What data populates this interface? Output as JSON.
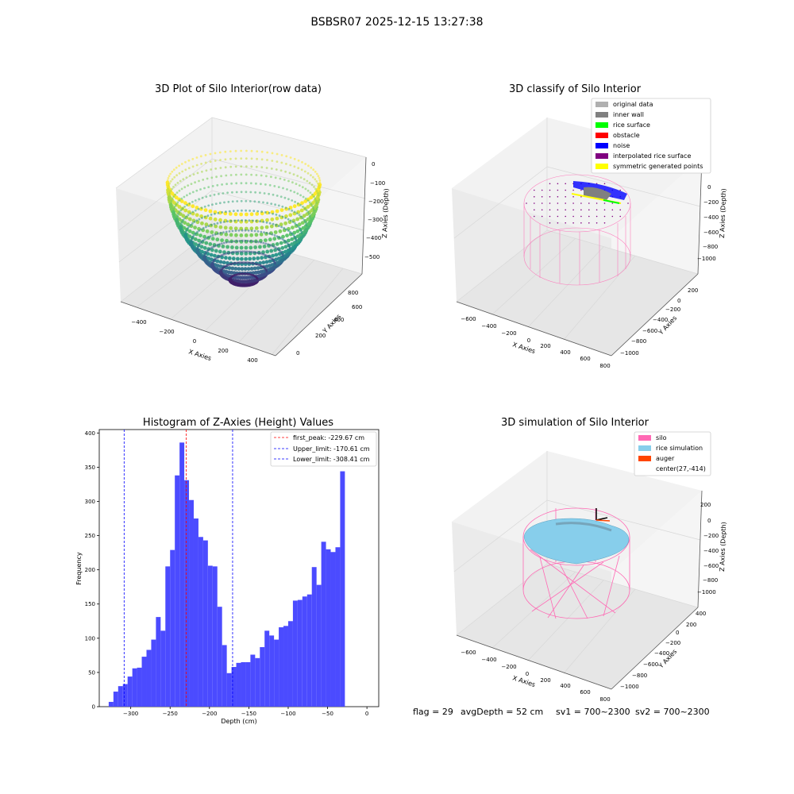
{
  "suptitle": "BSBSR07 2025-12-15 13:27:38",
  "colors": {
    "hist_bar": "#4b4bff",
    "peak_line": "#ff0000",
    "limit_line": "#0000ff",
    "silo": "#ff69b4",
    "rice_simulation": "#87ceeb",
    "auger": "#ff4500",
    "original_data": "#b0b0b0",
    "inner_wall": "#808080",
    "rice_surface": "#00ff00",
    "obstacle": "#ff0000",
    "noise": "#0000ff",
    "interpolated_rice_surface": "#800080",
    "symmetric_generated_points": "#ffff00"
  },
  "panel1": {
    "title": "3D Plot of Silo Interior(row data)",
    "xlabel": "X Axies",
    "ylabel": "Y Axies",
    "zlabel": "Z Axies (Depth)",
    "xticks": [
      "−400",
      "−200",
      "0",
      "200",
      "400"
    ],
    "yticks": [
      "0",
      "200",
      "400",
      "600",
      "800"
    ],
    "zticks": [
      "0",
      "−100",
      "−200",
      "−300",
      "−400",
      "−500"
    ]
  },
  "panel2": {
    "title": "3D classify of Silo Interior",
    "xlabel": "X Axies",
    "ylabel": "Y Axies",
    "zlabel": "Z Axies (Depth)",
    "xticks": [
      "−600",
      "−400",
      "−200",
      "0",
      "200",
      "400",
      "600",
      "800"
    ],
    "yticks": [
      "200",
      "0",
      "−200",
      "−400",
      "−600",
      "−800",
      "−1000"
    ],
    "zticks": [
      "200",
      "0",
      "−200",
      "−400",
      "−600",
      "−800",
      "−1000"
    ],
    "legend": [
      "original data",
      "inner wall",
      "rice surface",
      "obstacle",
      "noise",
      "interpolated rice surface",
      "symmetric generated points"
    ]
  },
  "panel4": {
    "title": "3D simulation of Silo Interior",
    "xlabel": "X Axies",
    "ylabel": "Y Axies",
    "zlabel": "Z Axies (Depth)",
    "xticks": [
      "−600",
      "−400",
      "−200",
      "0",
      "200",
      "400",
      "600",
      "800"
    ],
    "yticks": [
      "400",
      "200",
      "0",
      "−200",
      "−400",
      "−600",
      "−800",
      "−1000"
    ],
    "zticks": [
      "200",
      "0",
      "−200",
      "−400",
      "−600",
      "−800",
      "−1000"
    ],
    "legend": [
      "silo",
      "rice simulation",
      "auger",
      "center(27,-414)"
    ]
  },
  "footer": {
    "flag": "flag = 29",
    "avg_depth": "avgDepth = 52 cm",
    "sv1": "sv1 = 700~2300",
    "sv2": "sv2 = 700~2300"
  },
  "chart_data": {
    "type": "bar",
    "title": "Histogram of Z-Axies (Height) Values",
    "xlabel": "Depth (cm)",
    "ylabel": "Frequency",
    "xlim": [
      -340,
      15
    ],
    "ylim": [
      0,
      405
    ],
    "xticks": [
      -300,
      -250,
      -200,
      -150,
      -100,
      -50,
      0
    ],
    "yticks": [
      0,
      50,
      100,
      150,
      200,
      250,
      300,
      350,
      400
    ],
    "bin_start": -328,
    "bin_width": 6,
    "values": [
      7,
      22,
      30,
      33,
      44,
      56,
      57,
      73,
      83,
      98,
      131,
      111,
      205,
      229,
      338,
      386,
      331,
      302,
      275,
      248,
      243,
      206,
      205,
      146,
      90,
      49,
      58,
      64,
      65,
      65,
      76,
      71,
      87,
      111,
      104,
      98,
      116,
      118,
      125,
      155,
      156,
      161,
      164,
      204,
      178,
      241,
      230,
      226,
      233,
      344
    ],
    "lines": [
      {
        "label": "first_peak: -229.67 cm",
        "x": -229.67,
        "color_key": "peak_line"
      },
      {
        "label": "Upper_limit: -170.61 cm",
        "x": -170.61,
        "color_key": "limit_line"
      },
      {
        "label": "Lower_limit: -308.41 cm",
        "x": -308.41,
        "color_key": "limit_line"
      }
    ],
    "legend_position": "top-right"
  }
}
